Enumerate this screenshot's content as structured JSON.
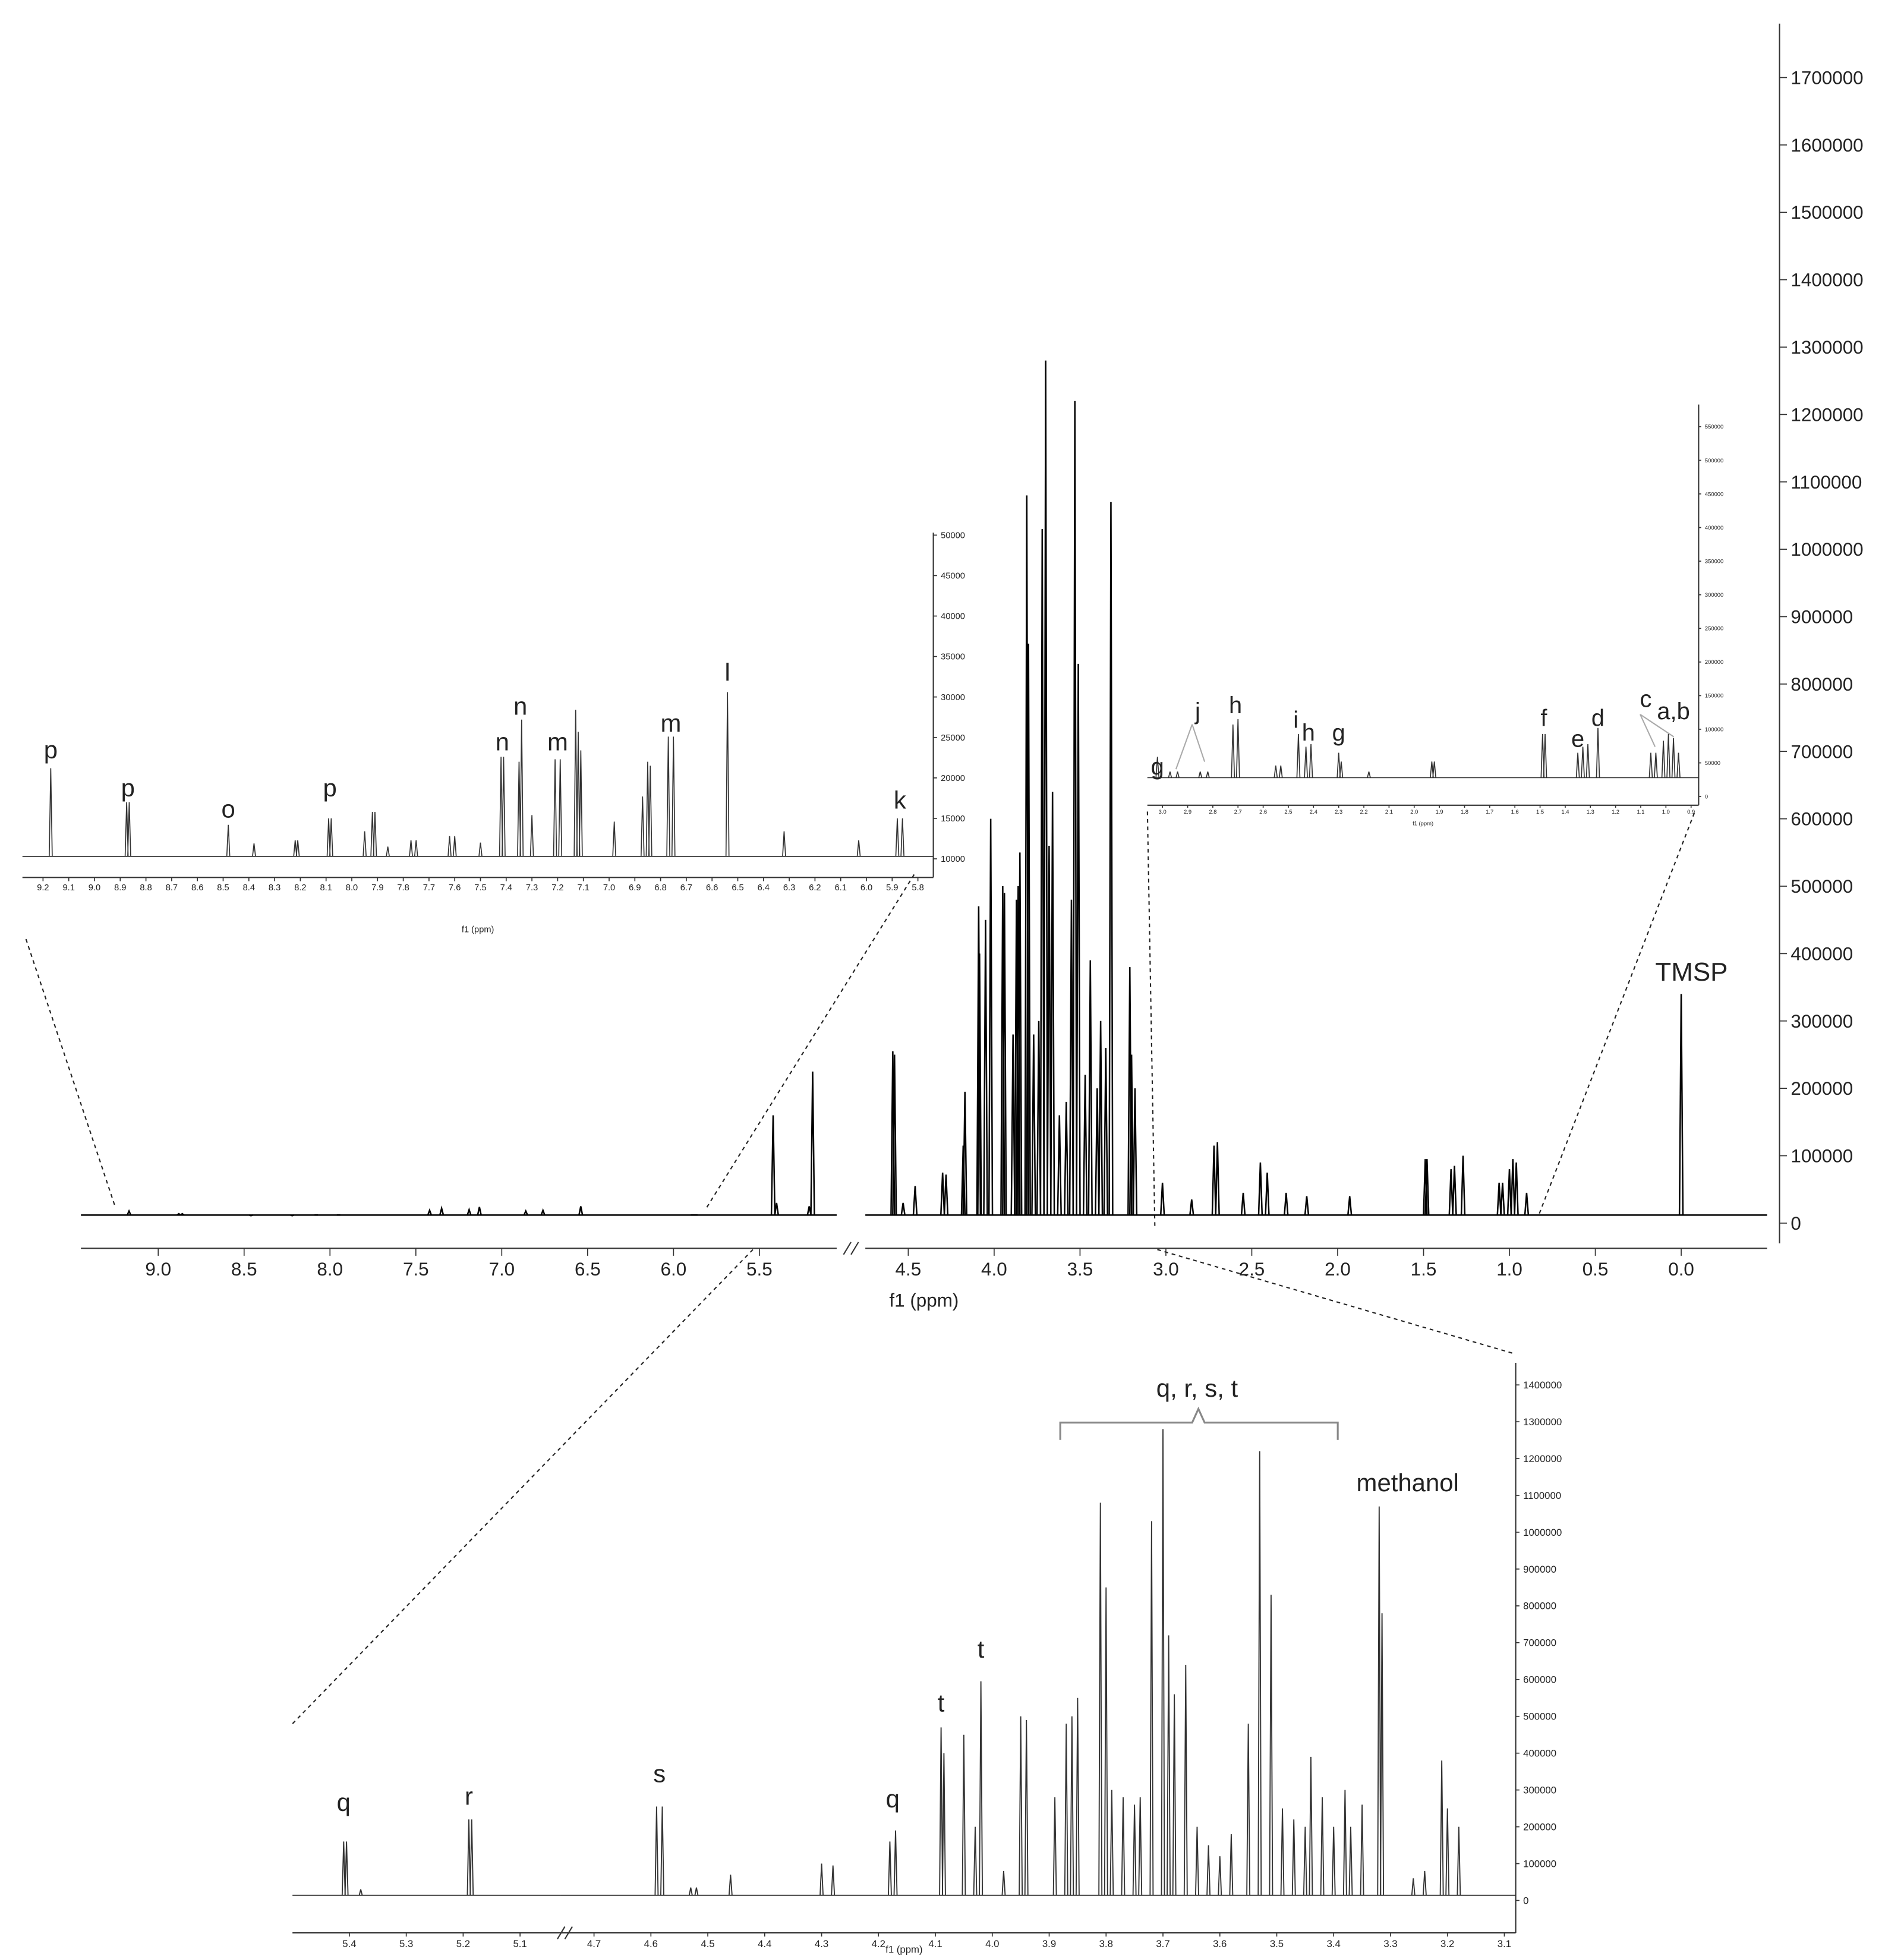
{
  "chart_data": [
    {
      "type": "spectrum",
      "xlabel": "f1 (ppm)",
      "color": "#000000",
      "xlim": [
        9.45,
        -0.5
      ],
      "xbreak": [
        5.05,
        4.75
      ],
      "ylim": [
        -30000,
        1780000
      ],
      "baseline": 12000,
      "xticks": [
        {
          "value": 9,
          "label": "9.0"
        },
        8.5,
        {
          "value": 8,
          "label": "8.0"
        },
        7.5,
        {
          "value": 7,
          "label": "7.0"
        },
        6.5,
        {
          "value": 6,
          "label": "6.0"
        },
        5.5,
        4.5,
        {
          "value": 4,
          "label": "4.0"
        },
        3.5,
        {
          "value": 3,
          "label": "3.0"
        },
        2.5,
        {
          "value": 2,
          "label": "2.0"
        },
        1.5,
        {
          "value": 1,
          "label": "1.0"
        },
        0.5,
        {
          "value": 0,
          "label": "0.0"
        }
      ],
      "yticks": [
        0,
        100000,
        200000,
        300000,
        400000,
        500000,
        600000,
        700000,
        800000,
        900000,
        1000000,
        1100000,
        1200000,
        1300000,
        1400000,
        1500000,
        1600000,
        1700000
      ],
      "x": [
        9.17,
        8.88,
        8.86,
        8.46,
        8.22,
        8.08,
        7.95,
        7.42,
        7.35,
        7.19,
        7.13,
        6.86,
        6.76,
        6.54,
        5.89,
        5.87,
        5.42,
        5.4,
        5.21,
        5.19,
        4.59,
        4.58,
        4.53,
        4.46,
        4.3,
        4.28,
        4.18,
        4.17,
        4.09,
        4.085,
        4.05,
        4.02,
        3.95,
        3.94,
        3.89,
        3.87,
        3.86,
        3.85,
        3.81,
        3.8,
        3.77,
        3.74,
        3.72,
        3.7,
        3.68,
        3.66,
        3.62,
        3.58,
        3.55,
        3.53,
        3.51,
        3.47,
        3.44,
        3.4,
        3.38,
        3.35,
        3.32,
        3.21,
        3.2,
        3.18,
        3.02,
        2.85,
        2.72,
        2.7,
        2.55,
        2.45,
        2.41,
        2.3,
        2.18,
        1.93,
        1.49,
        1.48,
        1.34,
        1.32,
        1.27,
        1.06,
        1.04,
        1.0,
        0.98,
        0.96,
        0.9,
        0.0
      ],
      "values": [
        18000,
        14000,
        14000,
        11000,
        11000,
        12000,
        12000,
        19000,
        22000,
        20000,
        24000,
        18000,
        19000,
        25000,
        12000,
        12000,
        160000,
        30000,
        25000,
        225000,
        255000,
        250000,
        30000,
        55000,
        75000,
        72000,
        115000,
        195000,
        470000,
        400000,
        450000,
        600000,
        500000,
        490000,
        280000,
        480000,
        500000,
        550000,
        1080000,
        860000,
        280000,
        300000,
        1030000,
        1280000,
        560000,
        640000,
        160000,
        180000,
        480000,
        1220000,
        830000,
        220000,
        390000,
        200000,
        300000,
        260000,
        1070000,
        380000,
        250000,
        200000,
        60000,
        35000,
        115000,
        120000,
        45000,
        90000,
        75000,
        45000,
        40000,
        40000,
        95000,
        95000,
        80000,
        85000,
        100000,
        60000,
        60000,
        80000,
        95000,
        90000,
        45000,
        340000
      ],
      "annotations": [
        {
          "text": "TMSP",
          "x": -0.06,
          "y": 360000
        }
      ]
    },
    {
      "type": "spectrum",
      "xlabel": "f1 (ppm)",
      "color": "#333333",
      "xlim": [
        9.28,
        5.74
      ],
      "ylim": [
        7700,
        50300
      ],
      "baseline": 10300,
      "xticks": [
        9.2,
        9.1,
        {
          "value": 9,
          "label": "9.0"
        },
        8.9,
        8.8,
        8.7,
        8.6,
        8.5,
        8.4,
        8.3,
        8.2,
        8.1,
        {
          "value": 8,
          "label": "8.0"
        },
        7.9,
        7.8,
        7.7,
        7.6,
        7.5,
        7.4,
        7.3,
        7.2,
        7.1,
        {
          "value": 7,
          "label": "7.0"
        },
        6.9,
        6.8,
        6.7,
        6.6,
        6.5,
        6.4,
        6.3,
        6.2,
        6.1,
        {
          "value": 6,
          "label": "6.0"
        },
        5.9,
        5.8
      ],
      "yticks": [
        10000,
        15000,
        20000,
        25000,
        30000,
        35000,
        40000,
        45000,
        50000
      ],
      "x": [
        9.17,
        8.875,
        8.865,
        8.48,
        8.38,
        8.22,
        8.21,
        8.09,
        8.08,
        7.95,
        7.92,
        7.91,
        7.86,
        7.77,
        7.75,
        7.62,
        7.6,
        7.5,
        7.42,
        7.41,
        7.35,
        7.34,
        7.3,
        7.21,
        7.19,
        7.13,
        7.12,
        7.11,
        6.98,
        6.87,
        6.85,
        6.84,
        6.77,
        6.75,
        6.54,
        6.32,
        6.03,
        5.88,
        5.86
      ],
      "values": [
        21200,
        17000,
        17000,
        14200,
        11900,
        12300,
        12300,
        15000,
        15000,
        13400,
        15800,
        15800,
        11500,
        12300,
        12300,
        12800,
        12800,
        12000,
        22600,
        22600,
        22000,
        27200,
        15400,
        22300,
        22300,
        28400,
        25700,
        23400,
        14600,
        17700,
        22000,
        21500,
        25100,
        25100,
        30600,
        13400,
        12300,
        15000,
        15000
      ],
      "annotations": [
        {
          "text": "p",
          "x": 9.17,
          "y": 22400
        },
        {
          "text": "p",
          "x": 8.87,
          "y": 17700
        },
        {
          "text": "o",
          "x": 8.48,
          "y": 15100
        },
        {
          "text": "p",
          "x": 8.085,
          "y": 17700
        },
        {
          "text": "n",
          "x": 7.415,
          "y": 23400
        },
        {
          "text": "n",
          "x": 7.345,
          "y": 27800
        },
        {
          "text": "m",
          "x": 7.2,
          "y": 23400
        },
        {
          "text": "m",
          "x": 6.76,
          "y": 25700
        },
        {
          "text": "l",
          "x": 6.54,
          "y": 32000
        },
        {
          "text": "k",
          "x": 5.87,
          "y": 16200
        }
      ]
    },
    {
      "type": "spectrum",
      "xlabel": "f1 (ppm)",
      "color": "#333333",
      "xlim": [
        3.06,
        0.87
      ],
      "ylim": [
        -13000,
        583000
      ],
      "baseline": 28000,
      "xticks": [
        {
          "value": 3,
          "label": "3.0"
        },
        2.9,
        2.8,
        2.7,
        2.6,
        2.5,
        2.4,
        2.3,
        2.2,
        2.1,
        {
          "value": 2,
          "label": "2.0"
        },
        1.9,
        1.8,
        1.7,
        1.6,
        1.5,
        1.4,
        1.3,
        1.2,
        1.1,
        {
          "value": 1,
          "label": "1.0"
        },
        0.9
      ],
      "yticks": [
        0,
        50000,
        100000,
        150000,
        200000,
        250000,
        300000,
        350000,
        400000,
        450000,
        500000,
        550000
      ],
      "x": [
        3.02,
        2.97,
        2.94,
        2.85,
        2.82,
        2.72,
        2.7,
        2.55,
        2.53,
        2.46,
        2.43,
        2.41,
        2.3,
        2.29,
        2.18,
        1.93,
        1.92,
        1.49,
        1.48,
        1.35,
        1.33,
        1.31,
        1.27,
        1.06,
        1.04,
        1.01,
        0.99,
        0.97,
        0.95
      ],
      "values": [
        59000,
        37000,
        37000,
        37000,
        37000,
        107000,
        115000,
        46000,
        46000,
        93000,
        74000,
        78000,
        65000,
        52000,
        37000,
        52000,
        52000,
        93000,
        93000,
        65000,
        74000,
        78000,
        102000,
        65000,
        65000,
        83000,
        93000,
        87000,
        65000
      ],
      "annotations": [
        {
          "text": "g",
          "x": 3.02,
          "y": 33000
        },
        {
          "text": "j",
          "x": 2.86,
          "y": 115000
        },
        {
          "text": "h",
          "x": 2.71,
          "y": 124000
        },
        {
          "text": "i",
          "x": 2.47,
          "y": 102000
        },
        {
          "text": "h",
          "x": 2.42,
          "y": 83000
        },
        {
          "text": "g",
          "x": 2.3,
          "y": 83000
        },
        {
          "text": "f",
          "x": 1.485,
          "y": 105000
        },
        {
          "text": "e",
          "x": 1.35,
          "y": 74000
        },
        {
          "text": "d",
          "x": 1.27,
          "y": 105000
        },
        {
          "text": "c",
          "x": 1.08,
          "y": 133000
        },
        {
          "text": "a,b",
          "x": 0.97,
          "y": 115000
        }
      ]
    },
    {
      "type": "spectrum",
      "xlabel": "f1 (ppm)",
      "color": "#333333",
      "xlim": [
        5.5,
        3.08
      ],
      "xbreak": [
        5.03,
        4.76
      ],
      "ylim": [
        -88000,
        1460000
      ],
      "baseline": 14000,
      "xticks": [
        5.4,
        5.3,
        5.2,
        5.1,
        4.7,
        4.6,
        4.5,
        4.4,
        4.3,
        4.2,
        4.1,
        {
          "value": 4,
          "label": "4.0"
        },
        3.9,
        3.8,
        3.7,
        3.6,
        3.5,
        3.4,
        3.3,
        3.2,
        3.1
      ],
      "yticks": [
        0,
        100000,
        200000,
        300000,
        400000,
        500000,
        600000,
        700000,
        800000,
        900000,
        1000000,
        1100000,
        1200000,
        1300000,
        1400000
      ],
      "x": [
        5.41,
        5.405,
        5.38,
        5.19,
        5.185,
        4.59,
        4.58,
        4.53,
        4.52,
        4.46,
        4.3,
        4.28,
        4.18,
        4.17,
        4.09,
        4.085,
        4.05,
        4.03,
        4.02,
        3.98,
        3.95,
        3.94,
        3.89,
        3.87,
        3.86,
        3.85,
        3.81,
        3.8,
        3.79,
        3.77,
        3.75,
        3.74,
        3.72,
        3.7,
        3.69,
        3.68,
        3.66,
        3.64,
        3.62,
        3.6,
        3.58,
        3.55,
        3.53,
        3.51,
        3.49,
        3.47,
        3.45,
        3.44,
        3.42,
        3.4,
        3.38,
        3.37,
        3.35,
        3.32,
        3.315,
        3.26,
        3.24,
        3.21,
        3.2,
        3.18
      ],
      "values": [
        160000,
        160000,
        30000,
        220000,
        220000,
        255000,
        255000,
        35000,
        35000,
        70000,
        100000,
        95000,
        160000,
        190000,
        470000,
        400000,
        450000,
        200000,
        595000,
        80000,
        500000,
        490000,
        280000,
        480000,
        500000,
        550000,
        1080000,
        850000,
        300000,
        280000,
        260000,
        280000,
        1030000,
        1280000,
        720000,
        560000,
        640000,
        200000,
        150000,
        120000,
        180000,
        480000,
        1220000,
        830000,
        250000,
        220000,
        200000,
        390000,
        280000,
        200000,
        300000,
        200000,
        260000,
        1070000,
        780000,
        60000,
        80000,
        380000,
        250000,
        200000
      ],
      "annotations": [
        {
          "text": "q",
          "x": 5.41,
          "y": 243000
        },
        {
          "text": "r",
          "x": 5.19,
          "y": 260000
        },
        {
          "text": "s",
          "x": 4.585,
          "y": 321000
        },
        {
          "text": "q",
          "x": 4.175,
          "y": 253000
        },
        {
          "text": "t",
          "x": 4.09,
          "y": 513000
        },
        {
          "text": "t",
          "x": 4.02,
          "y": 659000
        },
        {
          "text": "methanol",
          "x": 3.27,
          "y": 1111000
        },
        {
          "text": "q, r, s, t",
          "x": 3.64,
          "y": 1368000
        }
      ]
    }
  ]
}
